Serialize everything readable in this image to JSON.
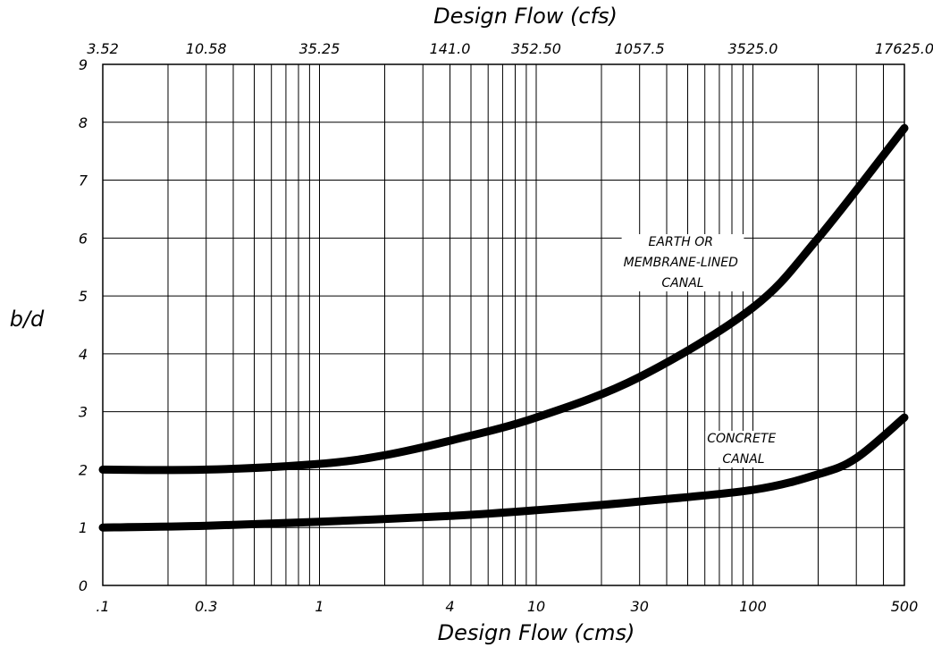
{
  "chart_data": {
    "type": "line",
    "x_scale": "log",
    "xlabel": "Design Flow (cms)",
    "x2label": "Design Flow (cfs)",
    "ylabel": "b/d",
    "xlim": [
      0.1,
      500
    ],
    "ylim": [
      0,
      9
    ],
    "grid": true,
    "x_tick_labels": [
      ".1",
      "0.3",
      "1",
      "4",
      "10",
      "30",
      "100",
      "500"
    ],
    "x_tick_values": [
      0.1,
      0.3,
      1,
      4,
      10,
      30,
      100,
      500
    ],
    "x2_tick_labels": [
      "3.52",
      "10.58",
      "35.25",
      "141.0",
      "352.50",
      "1057.5",
      "3525.0",
      "17625.0"
    ],
    "y_tick_labels": [
      "0",
      "1",
      "2",
      "3",
      "4",
      "5",
      "6",
      "7",
      "8",
      "9"
    ],
    "y_tick_values": [
      0,
      1,
      2,
      3,
      4,
      5,
      6,
      7,
      8,
      9
    ],
    "series": [
      {
        "x": [
          0.1,
          0.3,
          1,
          2,
          4,
          10,
          30,
          100,
          200,
          500
        ],
        "y": [
          2.0,
          2.0,
          2.1,
          2.25,
          2.5,
          2.9,
          3.6,
          4.8,
          6.0,
          7.9
        ]
      },
      {
        "x": [
          0.1,
          0.3,
          1,
          4,
          10,
          30,
          100,
          200,
          300,
          500
        ],
        "y": [
          1.0,
          1.03,
          1.1,
          1.2,
          1.3,
          1.45,
          1.65,
          1.92,
          2.2,
          2.9
        ]
      }
    ],
    "annotations": [
      {
        "lines": [
          "EARTH OR",
          "MEMBRANE-LINED",
          "CANAL"
        ]
      },
      {
        "lines": [
          "CONCRETE",
          "CANAL"
        ]
      }
    ]
  }
}
